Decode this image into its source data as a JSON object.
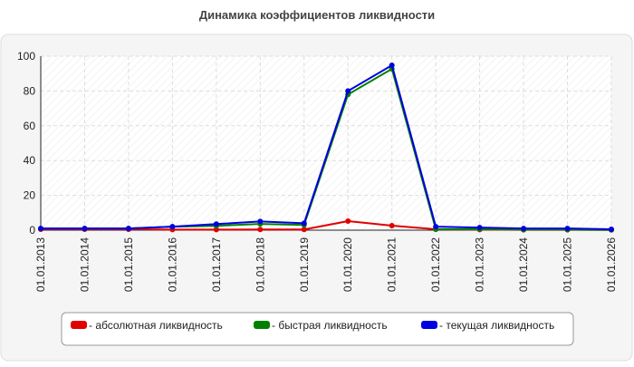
{
  "chart_data": {
    "type": "line",
    "title": "Динамика коэффициентов ликвидности",
    "categories": [
      "01.01.2013",
      "01.01.2014",
      "01.01.2015",
      "01.01.2016",
      "01.01.2017",
      "01.01.2018",
      "01.01.2019",
      "01.01.2020",
      "01.01.2021",
      "01.01.2022",
      "01.01.2023",
      "01.01.2024",
      "01.01.2025",
      "01.01.2026"
    ],
    "series": [
      {
        "name": "- абсолютная ликвидность",
        "color": "#e00000",
        "values": [
          0.5,
          0.5,
          0.5,
          0.3,
          0.3,
          0.4,
          0.4,
          5.2,
          2.6,
          0.5,
          0.3,
          0.2,
          0.2,
          0.1
        ]
      },
      {
        "name": "- быстрая ликвидность",
        "color": "#008000",
        "values": [
          1,
          1,
          1,
          2,
          2.5,
          3.6,
          3,
          78,
          92.7,
          0.5,
          0.5,
          0.3,
          0.3,
          0.2
        ]
      },
      {
        "name": "- текущая ликвидность",
        "color": "#0000e0",
        "values": [
          1,
          1,
          1,
          2,
          3.5,
          5,
          4,
          80,
          94.8,
          2,
          1.5,
          1,
          1,
          0.5
        ]
      }
    ],
    "ylim": [
      0,
      100
    ],
    "yticks": [
      0,
      20,
      40,
      60,
      80,
      100
    ],
    "grid": true
  }
}
